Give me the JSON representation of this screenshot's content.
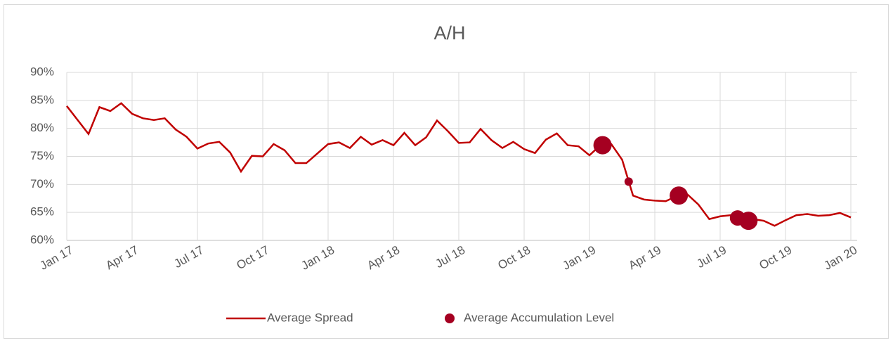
{
  "chart_data": {
    "type": "line",
    "title": "A/H",
    "xlim": [
      0,
      36
    ],
    "xticks": [
      {
        "value": 0,
        "label": "Jan 17"
      },
      {
        "value": 3,
        "label": "Apr 17"
      },
      {
        "value": 6,
        "label": "Jul 17"
      },
      {
        "value": 9,
        "label": "Oct 17"
      },
      {
        "value": 12,
        "label": "Jan 18"
      },
      {
        "value": 15,
        "label": "Apr 18"
      },
      {
        "value": 18,
        "label": "Jul 18"
      },
      {
        "value": 21,
        "label": "Oct 18"
      },
      {
        "value": 24,
        "label": "Jan 19"
      },
      {
        "value": 27,
        "label": "Apr 19"
      },
      {
        "value": 30,
        "label": "Jul 19"
      },
      {
        "value": 33,
        "label": "Oct 19"
      },
      {
        "value": 36,
        "label": "Jan 20"
      }
    ],
    "ylim": [
      60,
      90
    ],
    "yticks": [
      {
        "value": 60,
        "label": "60%"
      },
      {
        "value": 65,
        "label": "65%"
      },
      {
        "value": 70,
        "label": "70%"
      },
      {
        "value": 75,
        "label": "75%"
      },
      {
        "value": 80,
        "label": "80%"
      },
      {
        "value": 85,
        "label": "85%"
      },
      {
        "value": 90,
        "label": "90%"
      }
    ],
    "grid": true,
    "legend": "bottom",
    "series": [
      {
        "name": "Average Spread",
        "type": "line",
        "color": "#c00000",
        "x": [
          0,
          0.5,
          1,
          1.5,
          2,
          2.5,
          3,
          3.5,
          4,
          4.5,
          5,
          5.5,
          6,
          6.5,
          7,
          7.5,
          8,
          8.5,
          9,
          9.5,
          10,
          10.5,
          11,
          11.5,
          12,
          12.5,
          13,
          13.5,
          14,
          14.5,
          15,
          15.5,
          16,
          16.5,
          17,
          17.5,
          18,
          18.5,
          19,
          19.5,
          20,
          20.5,
          21,
          21.5,
          22,
          22.5,
          23,
          23.5,
          24,
          24.5,
          25,
          25.5,
          26,
          26.5,
          27,
          27.5,
          28,
          28.5,
          29,
          29.5,
          30,
          30.5,
          31,
          31.5,
          32,
          32.5,
          33,
          33.5,
          34,
          34.5,
          35,
          35.5,
          36
        ],
        "values": [
          84,
          81.5,
          79,
          83.8,
          83.1,
          84.5,
          82.6,
          81.8,
          81.5,
          81.8,
          79.8,
          78.5,
          76.4,
          77.3,
          77.6,
          75.7,
          72.3,
          75.1,
          75,
          77.2,
          76.1,
          73.8,
          73.8,
          75.5,
          77.2,
          77.5,
          76.5,
          78.5,
          77.1,
          77.9,
          77,
          79.2,
          77,
          78.4,
          81.4,
          79.5,
          77.4,
          77.5,
          79.9,
          77.9,
          76.5,
          77.6,
          76.3,
          75.6,
          78,
          79.1,
          77,
          76.8,
          75.2,
          77,
          77.2,
          74.4,
          68,
          67.3,
          67.1,
          67,
          67.9,
          68.2,
          66.4,
          63.8,
          64.3,
          64.5,
          63.9,
          63.8,
          63.5,
          62.6,
          63.6,
          64.5,
          64.7,
          64.4,
          64.5,
          64.9,
          64.1
        ]
      },
      {
        "name": "Average Accumulation Level",
        "type": "scatter",
        "color": "#a50021",
        "x": [
          24.6,
          25.8,
          28.1,
          30.8,
          31.3
        ],
        "values": [
          77,
          70.5,
          68,
          64,
          63.5
        ],
        "sizes": [
          13,
          6,
          13,
          11,
          13
        ]
      }
    ]
  }
}
